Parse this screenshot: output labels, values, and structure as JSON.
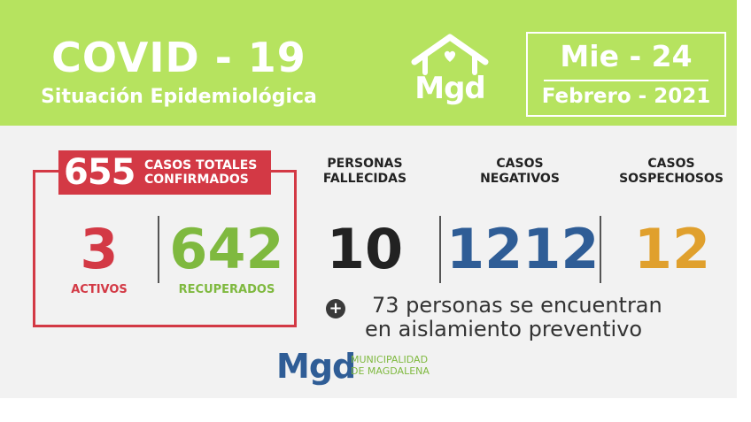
{
  "header": {
    "title": "COVID - 19",
    "subtitle": "Situación Epidemiológica",
    "logo": "Mgd",
    "date_day": "Mie - 24",
    "date_month": "Febrero - 2021"
  },
  "confirmed": {
    "total": "655",
    "label_line1": "CASOS TOTALES",
    "label_line2": "CONFIRMADOS",
    "active_value": "3",
    "active_label": "ACTIVOS",
    "recovered_value": "642",
    "recovered_label": "RECUPERADOS"
  },
  "deaths": {
    "label_line1": "PERSONAS",
    "label_line2": "FALLECIDAS",
    "value": "10"
  },
  "negatives": {
    "label_line1": "CASOS",
    "label_line2": "NEGATIVOS",
    "value": "1212"
  },
  "suspects": {
    "label_line1": "CASOS",
    "label_line2": "SOSPECHOSOS",
    "value": "12"
  },
  "isolation": {
    "icon": "plus-circle-icon",
    "line1": "73 personas se encuentran",
    "line2": "en aislamiento preventivo"
  },
  "footer": {
    "logo": "Mgd",
    "name_line1": "MUNICIPALIDAD",
    "name_line2": "DE MAGDALENA"
  },
  "colors": {
    "header_green": "#b6e35f",
    "red": "#d33945",
    "green": "#7fb93f",
    "blue": "#2f5d96",
    "orange": "#e0a02d",
    "dark": "#222222"
  }
}
